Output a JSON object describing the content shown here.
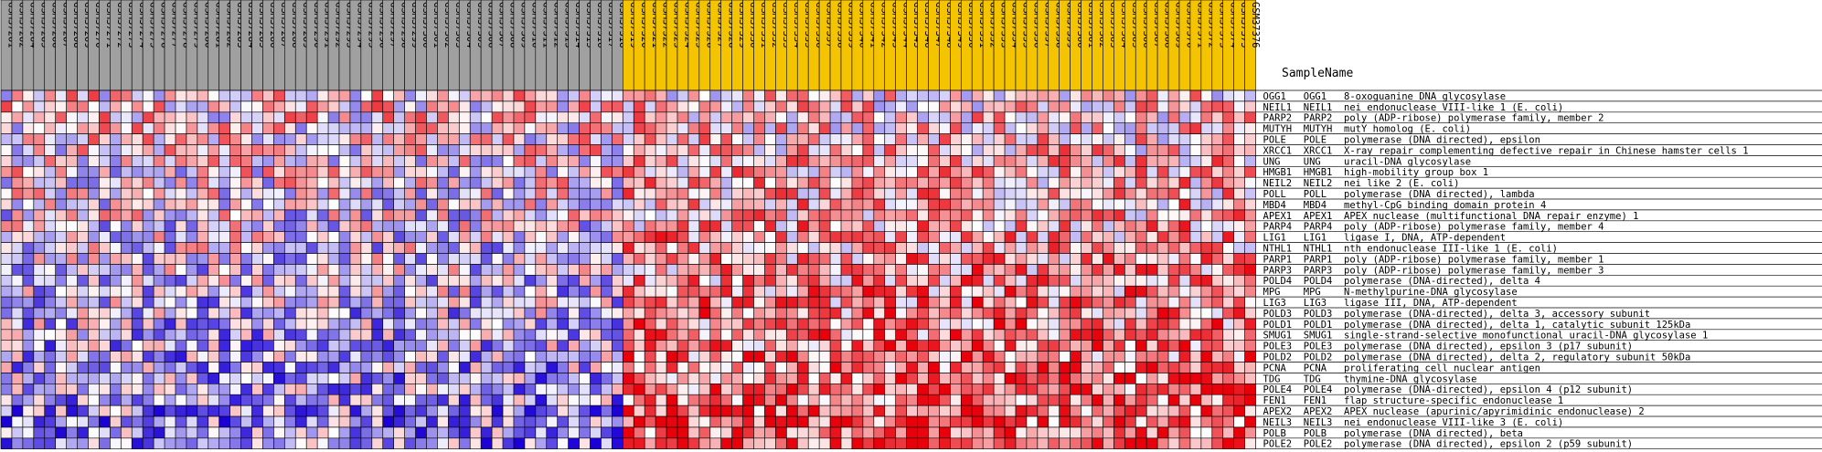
{
  "chart_data": {
    "type": "heatmap",
    "header_label": "SampleName",
    "colors": {
      "group1_header": "#a0a0a0",
      "group2_header": "#f5c400",
      "low": "#1a00d6",
      "mid": "#ffffff",
      "high": "#e8000a",
      "grid": "#000000"
    },
    "columns": [
      "GSM37261",
      "GSM37262",
      "GSM37264",
      "GSM37265",
      "GSM37266",
      "GSM37267",
      "GSM37268",
      "GSM37269",
      "GSM37270",
      "GSM37271",
      "GSM37272",
      "GSM37273",
      "GSM37274",
      "GSM37275",
      "GSM37276",
      "GSM37277",
      "GSM37278",
      "GSM37279",
      "GSM37280",
      "GSM37281",
      "GSM37282",
      "GSM37283",
      "GSM37284",
      "GSM37285",
      "GSM37286",
      "GSM37287",
      "GSM37288",
      "GSM37289",
      "GSM37290",
      "GSM37291",
      "GSM37292",
      "GSM37293",
      "GSM37294",
      "GSM37295",
      "GSM37296",
      "GSM37297",
      "GSM37298",
      "GSM37299",
      "GSM37300",
      "GSM37301",
      "GSM37302",
      "GSM37303",
      "GSM37304",
      "GSM37305",
      "GSM37306",
      "GSM37307",
      "GSM37308",
      "GSM37309",
      "GSM37310",
      "GSM37311",
      "GSM37312",
      "GSM37313",
      "GSM37314",
      "GSM37315",
      "GSM37316",
      "GSM37317",
      "GSM37318",
      "GSM37319",
      "GSM37320",
      "GSM37321",
      "GSM37322",
      "GSM37323",
      "GSM37324",
      "GSM37325",
      "GSM37326",
      "GSM37327",
      "GSM37328",
      "GSM37329",
      "GSM37330",
      "GSM37331",
      "GSM37332",
      "GSM37333",
      "GSM37334",
      "GSM37335",
      "GSM37336",
      "GSM37337",
      "GSM37338",
      "GSM37339",
      "GSM37340",
      "GSM37341",
      "GSM37342",
      "GSM37343",
      "GSM37344",
      "GSM37345",
      "GSM37346",
      "GSM37347",
      "GSM37348",
      "GSM37349",
      "GSM37350",
      "GSM37351",
      "GSM37352",
      "GSM37353",
      "GSM37354",
      "GSM37355",
      "GSM37356",
      "GSM37357",
      "GSM37358",
      "GSM37359",
      "GSM37360",
      "GSM37361",
      "GSM37362",
      "GSM37363",
      "GSM37364",
      "GSM37365",
      "GSM37366",
      "GSM37367",
      "GSM37368",
      "GSM37369",
      "GSM37370",
      "GSM37371",
      "GSM37372",
      "GSM37373",
      "GSM37374",
      "GSM37375",
      "GSM37376"
    ],
    "group_split": 57,
    "rows": [
      "OGG1   OGG1   8-oxoguanine DNA glycosylase",
      "NEIL1  NEIL1  nei endonuclease VIII-like 1 (E. coli)",
      "PARP2  PARP2  poly (ADP-ribose) polymerase family, member 2",
      "MUTYH  MUTYH  mutY homolog (E. coli)",
      "POLE   POLE   polymerase (DNA directed), epsilon",
      "XRCC1  XRCC1  X-ray repair complementing defective repair in Chinese hamster cells 1",
      "UNG    UNG    uracil-DNA glycosylase",
      "HMGB1  HMGB1  high-mobility group box 1",
      "NEIL2  NEIL2  nei like 2 (E. coli)",
      "POLL   POLL   polymerase (DNA directed), lambda",
      "MBD4   MBD4   methyl-CpG binding domain protein 4",
      "APEX1  APEX1  APEX nuclease (multifunctional DNA repair enzyme) 1",
      "PARP4  PARP4  poly (ADP-ribose) polymerase family, member 4",
      "LIG1   LIG1   ligase I, DNA, ATP-dependent",
      "NTHL1  NTHL1  nth endonuclease III-like 1 (E. coli)",
      "PARP1  PARP1  poly (ADP-ribose) polymerase family, member 1",
      "PARP3  PARP3  poly (ADP-ribose) polymerase family, member 3",
      "POLD4  POLD4  polymerase (DNA-directed), delta 4",
      "MPG    MPG    N-methylpurine-DNA glycosylase",
      "LIG3   LIG3   ligase III, DNA, ATP-dependent",
      "POLD3  POLD3  polymerase (DNA-directed), delta 3, accessory subunit",
      "POLD1  POLD1  polymerase (DNA directed), delta 1, catalytic subunit 125kDa",
      "SMUG1  SMUG1  single-strand-selective monofunctional uracil-DNA glycosylase 1",
      "POLE3  POLE3  polymerase (DNA directed), epsilon 3 (p17 subunit)",
      "POLD2  POLD2  polymerase (DNA directed), delta 2, regulatory subunit 50kDa",
      "PCNA   PCNA   proliferating cell nuclear antigen",
      "TDG    TDG    thymine-DNA glycosylase",
      "POLE4  POLE4  polymerase (DNA-directed), epsilon 4 (p12 subunit)",
      "FEN1   FEN1   flap structure-specific endonuclease 1",
      "APEX2  APEX2  APEX nuclease (apurinic/apyrimidinic endonuclease) 2",
      "NEIL3  NEIL3  nei endonuclease VIII-like 3 (E. coli)",
      "POLB   POLB   polymerase (DNA directed), beta",
      "POLE2  POLE2  polymerase (DNA directed), epsilon 2 (p59 subunit)"
    ]
  }
}
